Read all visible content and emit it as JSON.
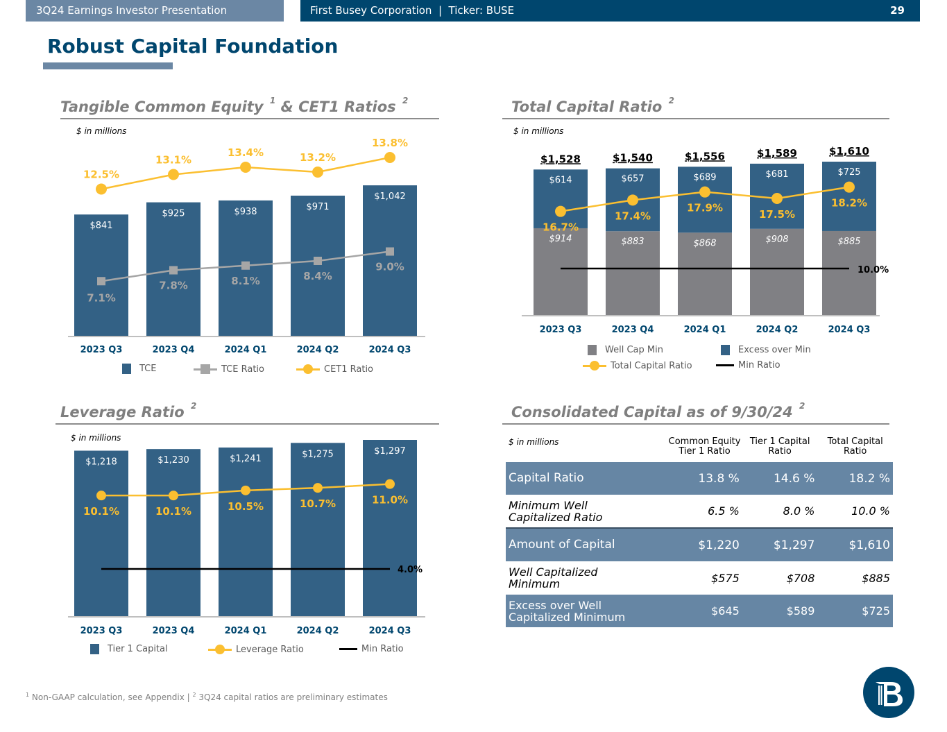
{
  "header": {
    "presentation_title": "3Q24 Earnings Investor Presentation",
    "company_ticker": "First Busey Corporation  |  Ticker: BUSE",
    "page_number": "29"
  },
  "page_title": "Robust Capital Foundation",
  "colors": {
    "navy": "#00466e",
    "bar_blue": "#336185",
    "gray_bar": "#808084",
    "gold": "#fbbf30",
    "line_gray": "#a6a6a6",
    "table_shade": "#6686a4"
  },
  "sections": {
    "tce": {
      "title": "Tangible Common Equity",
      "sup1": "1",
      "title_mid": "& CET1 Ratios",
      "sup2": "2",
      "units": "$ in millions"
    },
    "tcr": {
      "title": "Total Capital Ratio",
      "sup": "2",
      "units": "$ in millions"
    },
    "lev": {
      "title": "Leverage Ratio",
      "sup": "2",
      "units": "$ in millions"
    },
    "cons": {
      "title": "Consolidated Capital as of 9/30/24",
      "sup": "2",
      "units": "$ in millions"
    }
  },
  "chart_data": [
    {
      "id": "tce",
      "type": "bar",
      "title": "Tangible Common Equity & CET1 Ratios",
      "categories": [
        "2023 Q3",
        "2023 Q4",
        "2024 Q1",
        "2024 Q2",
        "2024 Q3"
      ],
      "series": [
        {
          "name": "TCE",
          "type": "bar",
          "values": [
            841,
            925,
            938,
            971,
            1042
          ],
          "labels": [
            "$841",
            "$925",
            "$938",
            "$971",
            "$1,042"
          ]
        },
        {
          "name": "TCE Ratio",
          "type": "line",
          "values": [
            7.1,
            7.8,
            8.1,
            8.4,
            9.0
          ],
          "labels": [
            "7.1%",
            "7.8%",
            "8.1%",
            "8.4%",
            "9.0%"
          ]
        },
        {
          "name": "CET1 Ratio",
          "type": "line",
          "values": [
            12.5,
            13.1,
            13.4,
            13.2,
            13.8
          ],
          "labels": [
            "12.5%",
            "13.1%",
            "13.4%",
            "13.2%",
            "13.8%"
          ]
        }
      ],
      "legend": [
        "TCE",
        "TCE Ratio",
        "CET1 Ratio"
      ],
      "legend_position": "bottom"
    },
    {
      "id": "tcr",
      "type": "bar",
      "stacked": true,
      "title": "Total Capital Ratio",
      "categories": [
        "2023 Q3",
        "2023 Q4",
        "2024 Q1",
        "2024 Q2",
        "2024 Q3"
      ],
      "totals": [
        "$1,528",
        "$1,540",
        "$1,556",
        "$1,589",
        "$1,610"
      ],
      "series": [
        {
          "name": "Well Cap Min",
          "type": "bar",
          "values": [
            914,
            883,
            868,
            908,
            885
          ],
          "labels": [
            "$914",
            "$883",
            "$868",
            "$908",
            "$885"
          ]
        },
        {
          "name": "Excess over Min",
          "type": "bar",
          "values": [
            614,
            657,
            689,
            681,
            725
          ],
          "labels": [
            "$614",
            "$657",
            "$689",
            "$681",
            "$725"
          ]
        },
        {
          "name": "Total Capital Ratio",
          "type": "line",
          "values": [
            16.7,
            17.4,
            17.9,
            17.5,
            18.2
          ],
          "labels": [
            "16.7%",
            "17.4%",
            "17.9%",
            "17.5%",
            "18.2%"
          ]
        },
        {
          "name": "Min Ratio",
          "type": "line",
          "values": [
            10.0,
            10.0,
            10.0,
            10.0,
            10.0
          ],
          "label": "10.0%"
        }
      ],
      "legend": [
        "Well Cap Min",
        "Excess over Min",
        "Total Capital Ratio",
        "Min Ratio"
      ],
      "legend_position": "bottom"
    },
    {
      "id": "lev",
      "type": "bar",
      "title": "Leverage Ratio",
      "categories": [
        "2023 Q3",
        "2023 Q4",
        "2024 Q1",
        "2024 Q2",
        "2024 Q3"
      ],
      "series": [
        {
          "name": "Tier 1 Capital",
          "type": "bar",
          "values": [
            1218,
            1230,
            1241,
            1275,
            1297
          ],
          "labels": [
            "$1,218",
            "$1,230",
            "$1,241",
            "$1,275",
            "$1,297"
          ]
        },
        {
          "name": "Leverage Ratio",
          "type": "line",
          "values": [
            10.1,
            10.1,
            10.5,
            10.7,
            11.0
          ],
          "labels": [
            "10.1%",
            "10.1%",
            "10.5%",
            "10.7%",
            "11.0%"
          ]
        },
        {
          "name": "Min Ratio",
          "type": "line",
          "values": [
            4.0,
            4.0,
            4.0,
            4.0,
            4.0
          ],
          "label": "4.0%"
        }
      ],
      "legend": [
        "Tier 1 Capital",
        "Leverage Ratio",
        "Min Ratio"
      ],
      "legend_position": "bottom"
    },
    {
      "id": "consolidated",
      "type": "table",
      "title": "Consolidated Capital as of 9/30/24",
      "columns": [
        "Common Equity Tier 1 Ratio",
        "Tier 1 Capital Ratio",
        "Total Capital Ratio"
      ],
      "rows": [
        {
          "label": "Capital Ratio",
          "values": [
            "13.8 %",
            "14.6 %",
            "18.2 %"
          ]
        },
        {
          "label": "Minimum Well Capitalized Ratio",
          "values": [
            "6.5 %",
            "8.0 %",
            "10.0 %"
          ]
        },
        {
          "label": "Amount of Capital",
          "values": [
            "$1,220",
            "$1,297",
            "$1,610"
          ]
        },
        {
          "label": "Well Capitalized Minimum",
          "values": [
            "$575",
            "$708",
            "$885"
          ]
        },
        {
          "label": "Excess over Well Capitalized Minimum",
          "values": [
            "$645",
            "$589",
            "$725"
          ]
        }
      ]
    }
  ],
  "table": {
    "headers": {
      "c1": "Common Equity Tier 1 Ratio",
      "c2": "Tier 1 Capital Ratio",
      "c3": "Total Capital Ratio"
    },
    "rows": [
      {
        "label": "Capital Ratio",
        "c1": "13.8 %",
        "c2": "14.6 %",
        "c3": "18.2 %"
      },
      {
        "label": "Minimum Well Capitalized Ratio",
        "c1": "6.5 %",
        "c2": "8.0 %",
        "c3": "10.0 %"
      },
      {
        "label": "Amount of Capital",
        "c1": "$1,220",
        "c2": "$1,297",
        "c3": "$1,610"
      },
      {
        "label": "Well Capitalized Minimum",
        "c1": "$575",
        "c2": "$708",
        "c3": "$885"
      },
      {
        "label": "Excess over Well Capitalized Minimum",
        "c1": "$645",
        "c2": "$589",
        "c3": "$725"
      }
    ]
  },
  "footnote": {
    "sup1": "1",
    "text1": " Non-GAAP calculation, see Appendix | ",
    "sup2": "2",
    "text2": " 3Q24 capital ratios are preliminary estimates"
  },
  "logo": {
    "icon": "busey-b-column-logo"
  }
}
